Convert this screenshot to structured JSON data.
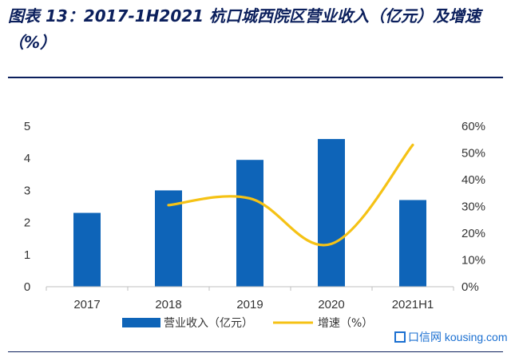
{
  "header": {
    "title": "图表 13：2017-1H2021 杭口城西院区营业收入（亿元）及增速（%）"
  },
  "watermark": {
    "text": "口信网 kousing.com"
  },
  "chart_data": {
    "type": "bar",
    "categories": [
      "2017",
      "2018",
      "2019",
      "2020",
      "2021H1"
    ],
    "series": [
      {
        "name": "营业收入（亿元）",
        "type": "bar",
        "axis": "left",
        "color": "#0e64b8",
        "values": [
          2.3,
          3.0,
          3.95,
          4.6,
          2.7
        ]
      },
      {
        "name": "增速（%）",
        "type": "line",
        "axis": "right",
        "color": "#f5c215",
        "values": [
          null,
          30.5,
          33,
          16,
          53
        ]
      }
    ],
    "y_left": {
      "min": 0,
      "max": 5,
      "ticks": [
        "0",
        "1",
        "2",
        "3",
        "4",
        "5"
      ]
    },
    "y_right": {
      "min": 0,
      "max": 60,
      "ticks": [
        "0%",
        "10%",
        "20%",
        "30%",
        "40%",
        "50%",
        "60%"
      ]
    },
    "grid": false,
    "legend_position": "bottom"
  }
}
